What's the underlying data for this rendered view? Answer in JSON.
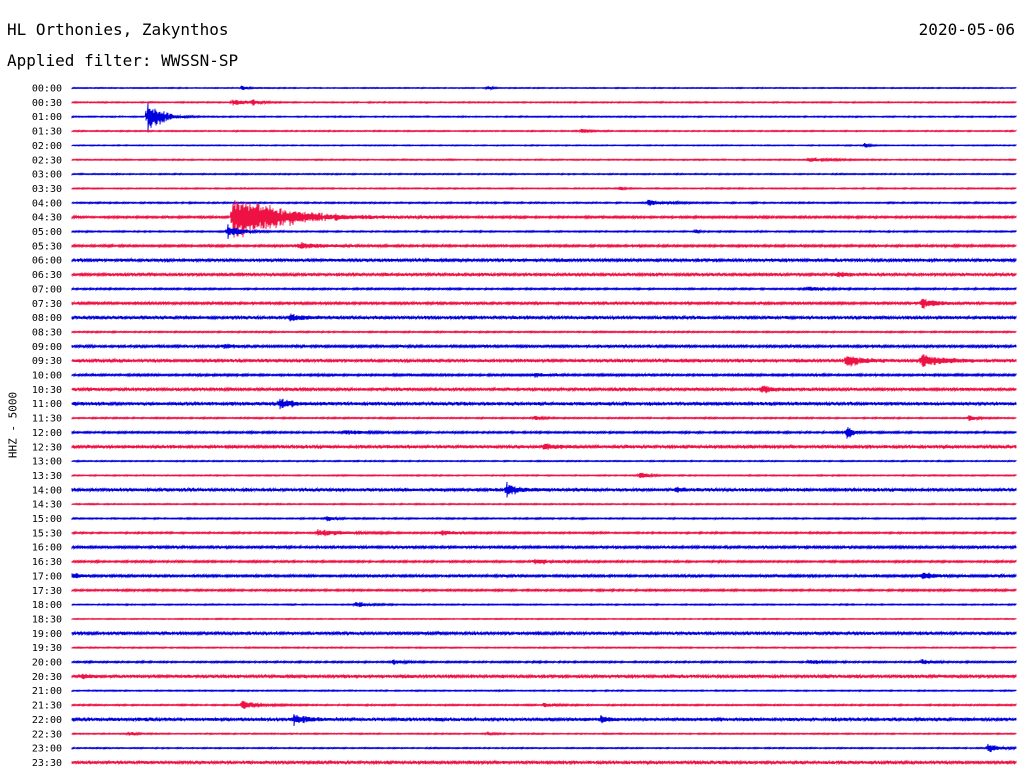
{
  "header": {
    "station": "HL Orthonies, Zakynthos",
    "date": "2020-05-06",
    "filter": "Applied filter: WWSSN-SP"
  },
  "axis_label": "HHZ - 5000",
  "colors": {
    "even": "#0000dd",
    "odd": "#ee1144"
  },
  "traces": [
    {
      "time": "00:00",
      "color": "#0000dd",
      "noise": 0.4,
      "events": [
        {
          "t": 0.18,
          "amp": 4,
          "dur": 0.004
        },
        {
          "t": 0.44,
          "amp": 3,
          "dur": 0.004
        }
      ]
    },
    {
      "time": "00:30",
      "color": "#ee1144",
      "noise": 0.5,
      "events": [
        {
          "t": 0.17,
          "amp": 4,
          "dur": 0.012
        },
        {
          "t": 0.19,
          "amp": 3,
          "dur": 0.008
        }
      ]
    },
    {
      "time": "01:00",
      "color": "#0000dd",
      "noise": 0.5,
      "events": [
        {
          "t": 0.08,
          "amp": 24,
          "dur": 0.012
        }
      ]
    },
    {
      "time": "01:30",
      "color": "#ee1144",
      "noise": 0.5,
      "events": [
        {
          "t": 0.54,
          "amp": 3,
          "dur": 0.006
        }
      ]
    },
    {
      "time": "02:00",
      "color": "#0000dd",
      "noise": 0.4,
      "events": [
        {
          "t": 0.84,
          "amp": 3,
          "dur": 0.004
        }
      ]
    },
    {
      "time": "02:30",
      "color": "#ee1144",
      "noise": 0.5,
      "events": [
        {
          "t": 0.78,
          "amp": 3,
          "dur": 0.018
        }
      ]
    },
    {
      "time": "03:00",
      "color": "#0000dd",
      "noise": 0.5,
      "events": []
    },
    {
      "time": "03:30",
      "color": "#ee1144",
      "noise": 0.5,
      "events": [
        {
          "t": 0.58,
          "amp": 3,
          "dur": 0.004
        }
      ]
    },
    {
      "time": "04:00",
      "color": "#0000dd",
      "noise": 0.6,
      "events": [
        {
          "t": 0.61,
          "amp": 3,
          "dur": 0.02
        }
      ]
    },
    {
      "time": "04:30",
      "color": "#ee1144",
      "noise": 0.9,
      "events": [
        {
          "t": 0.17,
          "amp": 32,
          "dur": 0.045
        }
      ]
    },
    {
      "time": "05:00",
      "color": "#0000dd",
      "noise": 0.6,
      "events": [
        {
          "t": 0.165,
          "amp": 9,
          "dur": 0.012
        },
        {
          "t": 0.66,
          "amp": 3,
          "dur": 0.004
        }
      ]
    },
    {
      "time": "05:30",
      "color": "#ee1144",
      "noise": 0.9,
      "events": [
        {
          "t": 0.24,
          "amp": 4,
          "dur": 0.025
        }
      ]
    },
    {
      "time": "06:00",
      "color": "#0000dd",
      "noise": 1.3,
      "events": []
    },
    {
      "time": "06:30",
      "color": "#ee1144",
      "noise": 1.2,
      "events": [
        {
          "t": 0.81,
          "amp": 3,
          "dur": 0.012
        }
      ]
    },
    {
      "time": "07:00",
      "color": "#0000dd",
      "noise": 0.7,
      "events": [
        {
          "t": 0.78,
          "amp": 3,
          "dur": 0.012
        }
      ]
    },
    {
      "time": "07:30",
      "color": "#ee1144",
      "noise": 1.0,
      "events": [
        {
          "t": 0.9,
          "amp": 8,
          "dur": 0.012
        }
      ]
    },
    {
      "time": "08:00",
      "color": "#0000dd",
      "noise": 1.3,
      "events": [
        {
          "t": 0.23,
          "amp": 4,
          "dur": 0.015
        }
      ]
    },
    {
      "time": "08:30",
      "color": "#ee1144",
      "noise": 0.6,
      "events": []
    },
    {
      "time": "09:00",
      "color": "#0000dd",
      "noise": 1.0,
      "events": [
        {
          "t": 0.16,
          "amp": 3,
          "dur": 0.012
        }
      ]
    },
    {
      "time": "09:30",
      "color": "#ee1144",
      "noise": 1.3,
      "events": [
        {
          "t": 0.82,
          "amp": 8,
          "dur": 0.015
        },
        {
          "t": 0.9,
          "amp": 9,
          "dur": 0.02
        }
      ]
    },
    {
      "time": "10:00",
      "color": "#0000dd",
      "noise": 0.9,
      "events": [
        {
          "t": 0.49,
          "amp": 3,
          "dur": 0.008
        }
      ]
    },
    {
      "time": "10:30",
      "color": "#ee1144",
      "noise": 1.2,
      "events": [
        {
          "t": 0.73,
          "amp": 5,
          "dur": 0.012
        }
      ]
    },
    {
      "time": "11:00",
      "color": "#0000dd",
      "noise": 1.4,
      "events": [
        {
          "t": 0.22,
          "amp": 6,
          "dur": 0.012
        }
      ]
    },
    {
      "time": "11:30",
      "color": "#ee1144",
      "noise": 0.6,
      "events": [
        {
          "t": 0.49,
          "amp": 3,
          "dur": 0.008
        },
        {
          "t": 0.95,
          "amp": 3,
          "dur": 0.008
        }
      ]
    },
    {
      "time": "12:00",
      "color": "#0000dd",
      "noise": 0.8,
      "events": [
        {
          "t": 0.29,
          "amp": 3,
          "dur": 0.015
        },
        {
          "t": 0.82,
          "amp": 10,
          "dur": 0.006
        }
      ]
    },
    {
      "time": "12:30",
      "color": "#ee1144",
      "noise": 1.3,
      "events": [
        {
          "t": 0.5,
          "amp": 4,
          "dur": 0.012
        }
      ]
    },
    {
      "time": "13:00",
      "color": "#0000dd",
      "noise": 0.5,
      "events": []
    },
    {
      "time": "13:30",
      "color": "#ee1144",
      "noise": 0.5,
      "events": [
        {
          "t": 0.6,
          "amp": 4,
          "dur": 0.01
        }
      ]
    },
    {
      "time": "14:00",
      "color": "#0000dd",
      "noise": 1.3,
      "events": [
        {
          "t": 0.46,
          "amp": 8,
          "dur": 0.012
        },
        {
          "t": 0.64,
          "amp": 3,
          "dur": 0.008
        }
      ]
    },
    {
      "time": "14:30",
      "color": "#ee1144",
      "noise": 0.5,
      "events": []
    },
    {
      "time": "15:00",
      "color": "#0000dd",
      "noise": 0.6,
      "events": [
        {
          "t": 0.27,
          "amp": 3,
          "dur": 0.008
        }
      ]
    },
    {
      "time": "15:30",
      "color": "#ee1144",
      "noise": 0.7,
      "events": [
        {
          "t": 0.26,
          "amp": 4,
          "dur": 0.025
        },
        {
          "t": 0.39,
          "amp": 3,
          "dur": 0.015
        }
      ]
    },
    {
      "time": "16:00",
      "color": "#0000dd",
      "noise": 1.0,
      "events": []
    },
    {
      "time": "16:30",
      "color": "#ee1144",
      "noise": 0.8,
      "events": [
        {
          "t": 0.49,
          "amp": 4,
          "dur": 0.015
        }
      ]
    },
    {
      "time": "17:00",
      "color": "#0000dd",
      "noise": 1.0,
      "events": [
        {
          "t": 0.0,
          "amp": 3,
          "dur": 0.01
        },
        {
          "t": 0.9,
          "amp": 4,
          "dur": 0.012
        }
      ]
    },
    {
      "time": "17:30",
      "color": "#ee1144",
      "noise": 0.8,
      "events": []
    },
    {
      "time": "18:00",
      "color": "#0000dd",
      "noise": 0.5,
      "events": [
        {
          "t": 0.3,
          "amp": 4,
          "dur": 0.012
        }
      ]
    },
    {
      "time": "18:30",
      "color": "#ee1144",
      "noise": 0.4,
      "events": []
    },
    {
      "time": "19:00",
      "color": "#0000dd",
      "noise": 1.2,
      "events": []
    },
    {
      "time": "19:30",
      "color": "#ee1144",
      "noise": 0.5,
      "events": []
    },
    {
      "time": "20:00",
      "color": "#0000dd",
      "noise": 0.7,
      "events": [
        {
          "t": 0.34,
          "amp": 3,
          "dur": 0.008
        },
        {
          "t": 0.78,
          "amp": 3,
          "dur": 0.01
        },
        {
          "t": 0.9,
          "amp": 3,
          "dur": 0.01
        }
      ]
    },
    {
      "time": "20:30",
      "color": "#ee1144",
      "noise": 1.3,
      "events": [
        {
          "t": 0.01,
          "amp": 3,
          "dur": 0.008
        }
      ]
    },
    {
      "time": "21:00",
      "color": "#0000dd",
      "noise": 0.5,
      "events": []
    },
    {
      "time": "21:30",
      "color": "#ee1144",
      "noise": 0.6,
      "events": [
        {
          "t": 0.18,
          "amp": 6,
          "dur": 0.015
        },
        {
          "t": 0.5,
          "amp": 3,
          "dur": 0.01
        }
      ]
    },
    {
      "time": "22:00",
      "color": "#0000dd",
      "noise": 1.4,
      "events": [
        {
          "t": 0.235,
          "amp": 6,
          "dur": 0.012
        },
        {
          "t": 0.56,
          "amp": 4,
          "dur": 0.008
        }
      ]
    },
    {
      "time": "22:30",
      "color": "#ee1144",
      "noise": 0.5,
      "events": [
        {
          "t": 0.06,
          "amp": 3,
          "dur": 0.006
        },
        {
          "t": 0.44,
          "amp": 3,
          "dur": 0.006
        }
      ]
    },
    {
      "time": "23:00",
      "color": "#0000dd",
      "noise": 0.5,
      "events": [
        {
          "t": 0.97,
          "amp": 5,
          "dur": 0.012
        }
      ]
    },
    {
      "time": "23:30",
      "color": "#ee1144",
      "noise": 1.3,
      "events": []
    }
  ]
}
